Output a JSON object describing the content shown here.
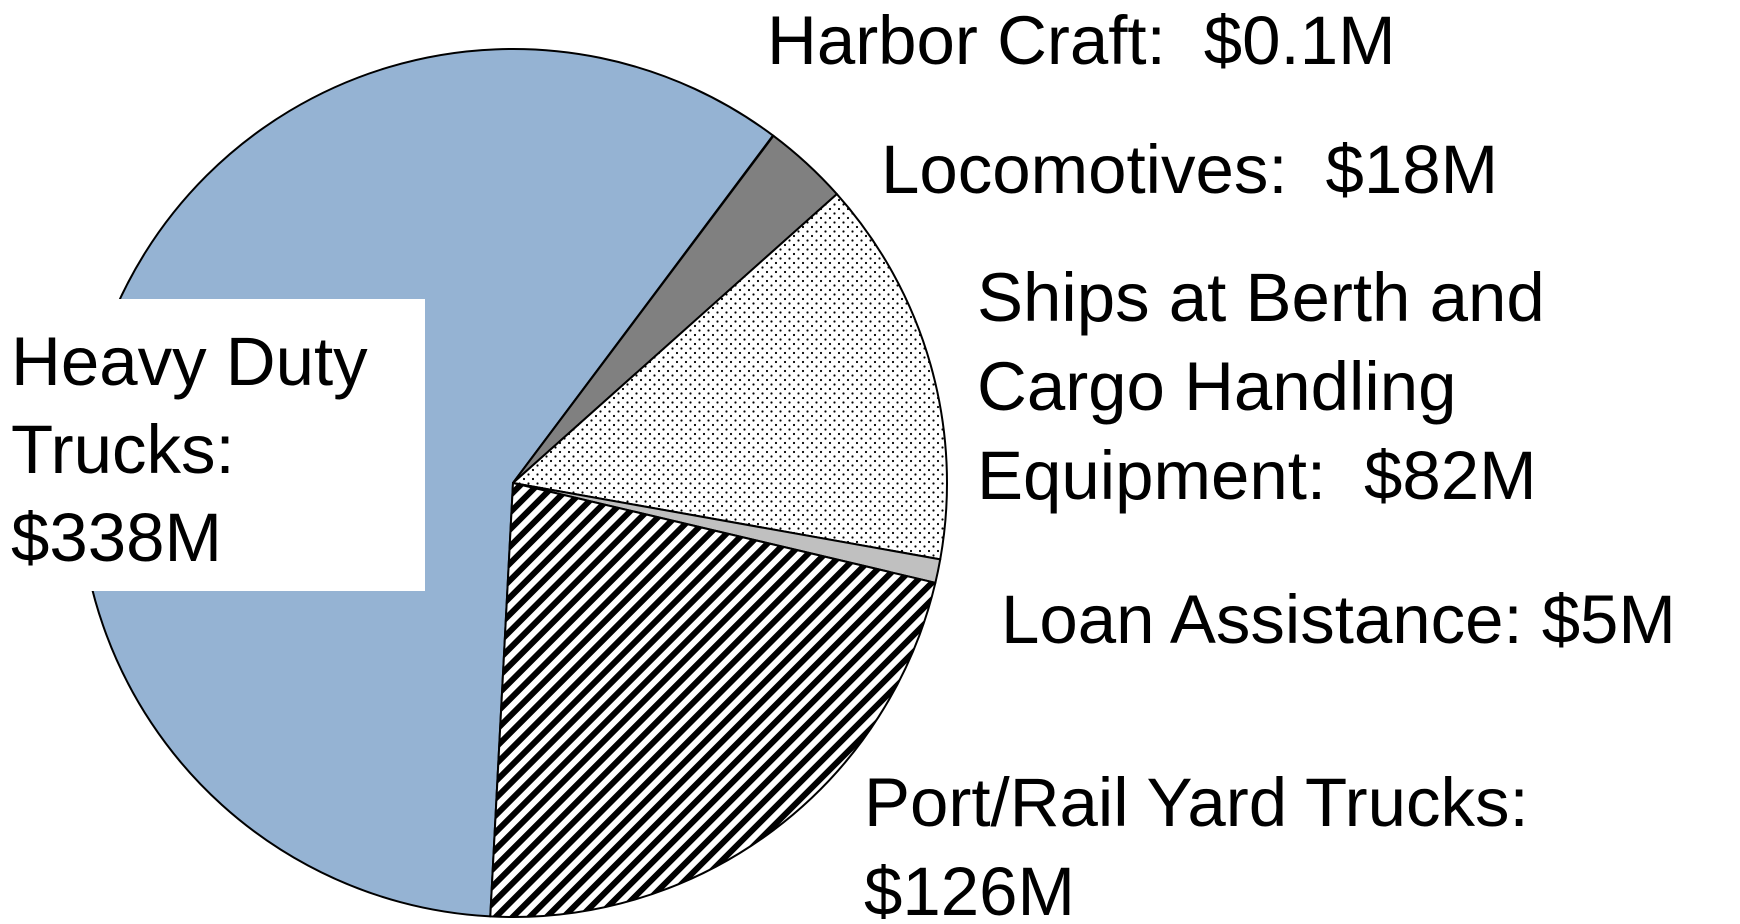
{
  "chart_data": {
    "type": "pie",
    "categories": [
      [
        "Heavy Duty",
        "Trucks:"
      ],
      [
        "Harbor Craft:"
      ],
      [
        "Locomotives:"
      ],
      [
        "Ships at Berth and",
        "Cargo Handling",
        "Equipment:"
      ],
      [
        "Loan Assistance:"
      ],
      [
        "Port/Rail Yard Trucks:"
      ]
    ],
    "values": [
      338,
      0.1,
      18,
      82,
      5,
      126
    ],
    "value_labels": [
      "$338M",
      "$0.1M",
      "$18M",
      "$82M",
      "$5M",
      "$126M"
    ],
    "colors": [
      "#95b3d3",
      "#ffffff",
      "#808080",
      "#ffffff",
      "#c0c0c0",
      "#ffffff"
    ],
    "patterns": [
      null,
      null,
      null,
      "dots",
      null,
      "hatch"
    ]
  }
}
